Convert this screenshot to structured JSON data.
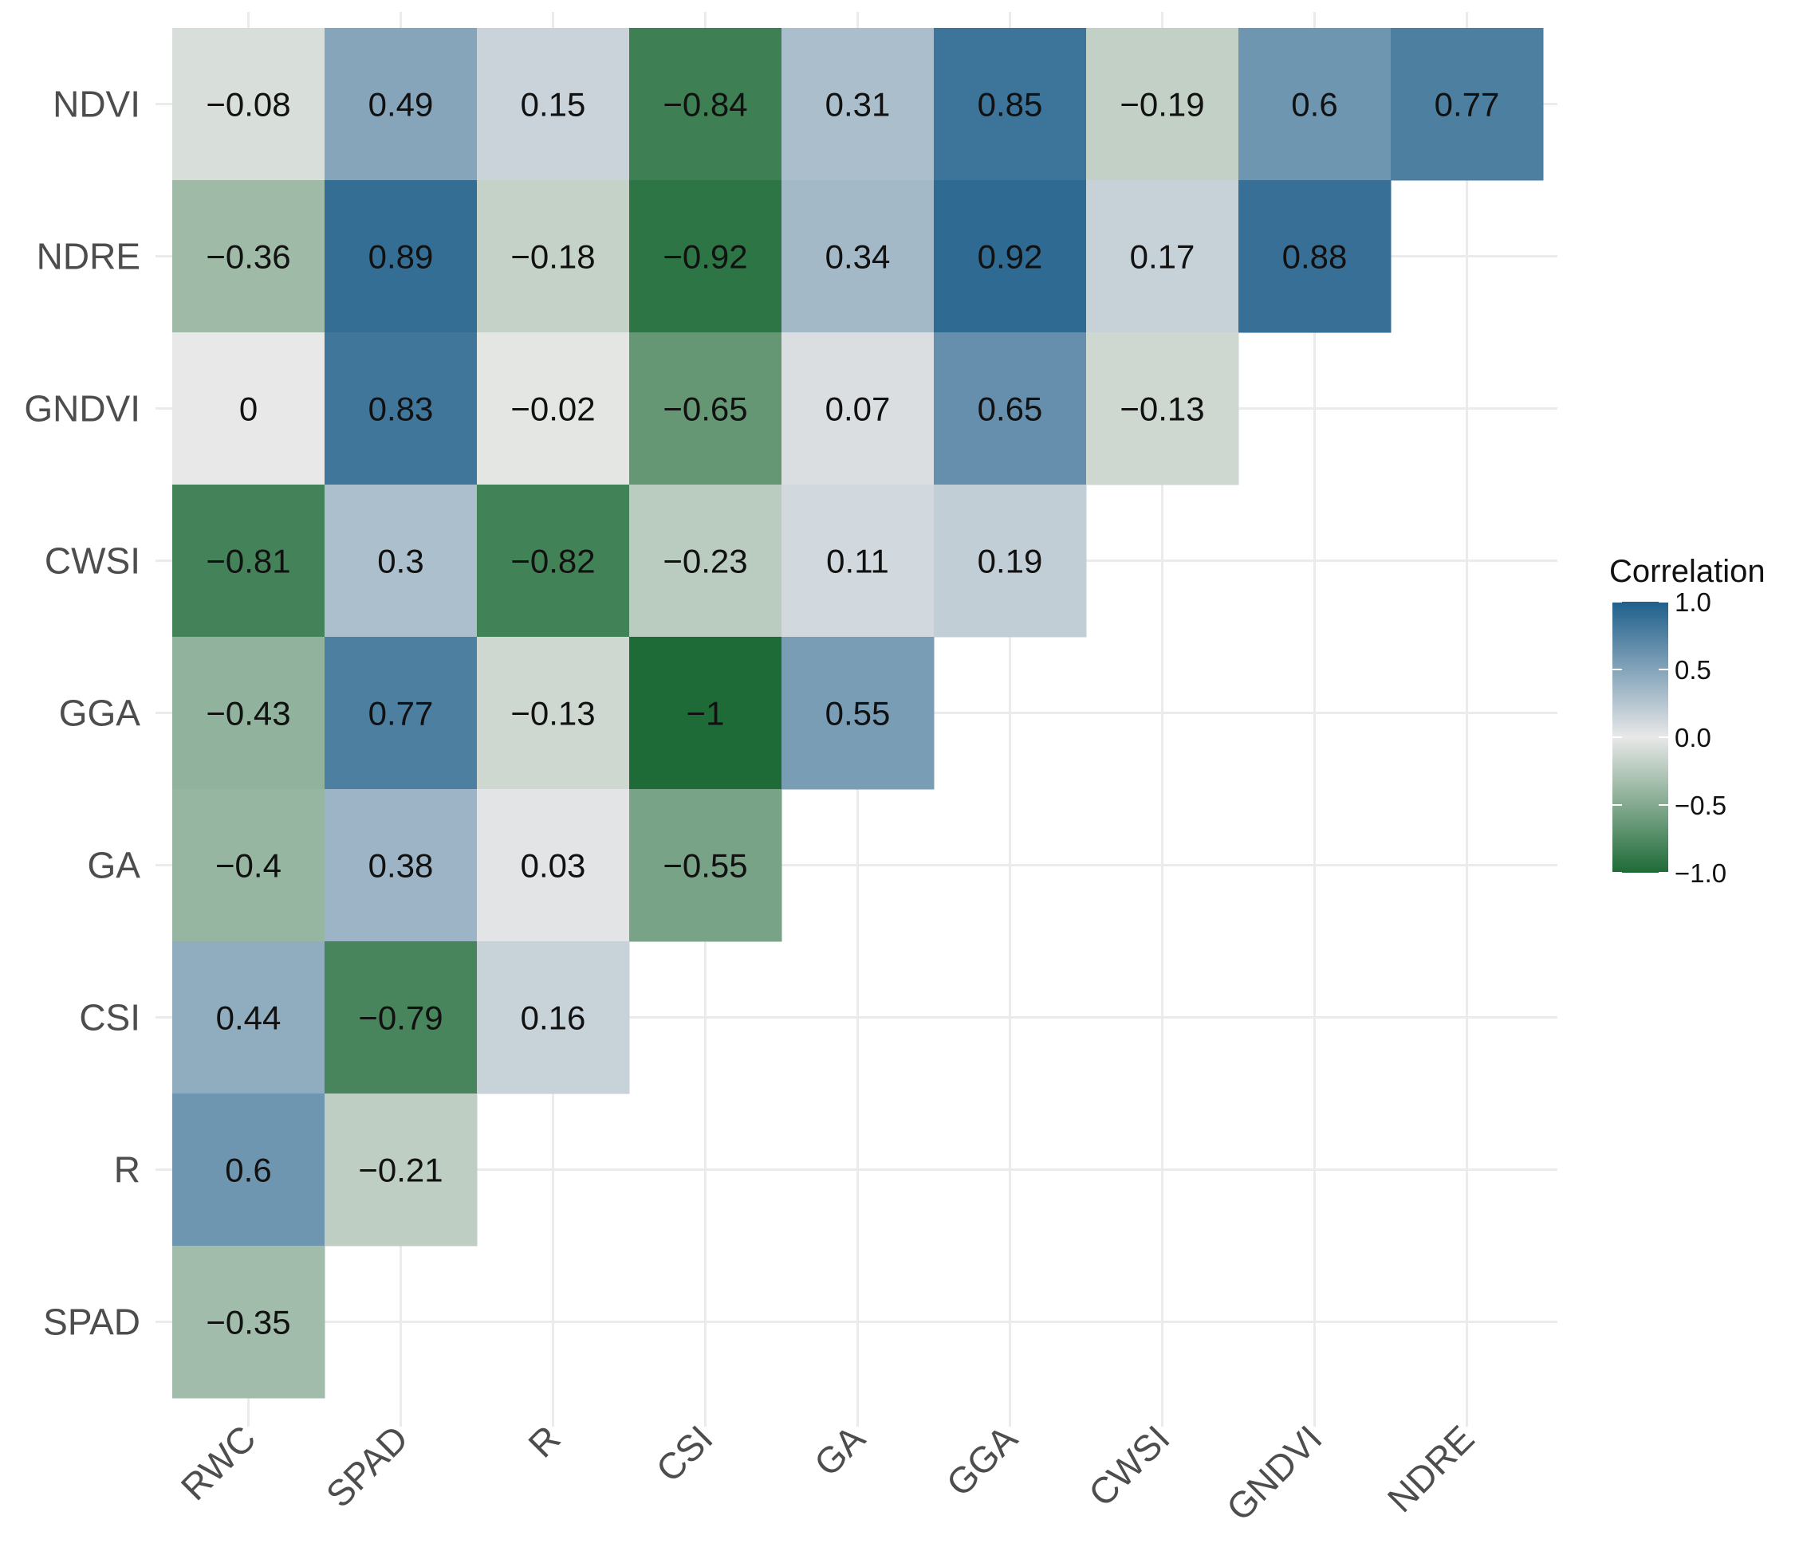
{
  "chart_data": {
    "type": "heatmap",
    "title": "",
    "xlabel": "",
    "ylabel": "",
    "x_categories": [
      "RWC",
      "SPAD",
      "R",
      "CSI",
      "GA",
      "GGA",
      "CWSI",
      "GNDVI",
      "NDRE"
    ],
    "y_categories": [
      "NDVI",
      "NDRE",
      "GNDVI",
      "CWSI",
      "GGA",
      "GA",
      "CSI",
      "R",
      "SPAD"
    ],
    "cells": [
      {
        "y": "NDVI",
        "x": "RWC",
        "value": -0.08,
        "label": "−0.08"
      },
      {
        "y": "NDVI",
        "x": "SPAD",
        "value": 0.49,
        "label": "0.49"
      },
      {
        "y": "NDVI",
        "x": "R",
        "value": 0.15,
        "label": "0.15"
      },
      {
        "y": "NDVI",
        "x": "CSI",
        "value": -0.84,
        "label": "−0.84"
      },
      {
        "y": "NDVI",
        "x": "GA",
        "value": 0.31,
        "label": "0.31"
      },
      {
        "y": "NDVI",
        "x": "GGA",
        "value": 0.85,
        "label": "0.85"
      },
      {
        "y": "NDVI",
        "x": "CWSI",
        "value": -0.19,
        "label": "−0.19"
      },
      {
        "y": "NDVI",
        "x": "GNDVI",
        "value": 0.6,
        "label": "0.6"
      },
      {
        "y": "NDVI",
        "x": "NDRE",
        "value": 0.77,
        "label": "0.77"
      },
      {
        "y": "NDRE",
        "x": "RWC",
        "value": -0.36,
        "label": "−0.36"
      },
      {
        "y": "NDRE",
        "x": "SPAD",
        "value": 0.89,
        "label": "0.89"
      },
      {
        "y": "NDRE",
        "x": "R",
        "value": -0.18,
        "label": "−0.18"
      },
      {
        "y": "NDRE",
        "x": "CSI",
        "value": -0.92,
        "label": "−0.92"
      },
      {
        "y": "NDRE",
        "x": "GA",
        "value": 0.34,
        "label": "0.34"
      },
      {
        "y": "NDRE",
        "x": "GGA",
        "value": 0.92,
        "label": "0.92"
      },
      {
        "y": "NDRE",
        "x": "CWSI",
        "value": 0.17,
        "label": "0.17"
      },
      {
        "y": "NDRE",
        "x": "GNDVI",
        "value": 0.88,
        "label": "0.88"
      },
      {
        "y": "GNDVI",
        "x": "RWC",
        "value": 0,
        "label": "0"
      },
      {
        "y": "GNDVI",
        "x": "SPAD",
        "value": 0.83,
        "label": "0.83"
      },
      {
        "y": "GNDVI",
        "x": "R",
        "value": -0.02,
        "label": "−0.02"
      },
      {
        "y": "GNDVI",
        "x": "CSI",
        "value": -0.65,
        "label": "−0.65"
      },
      {
        "y": "GNDVI",
        "x": "GA",
        "value": 0.07,
        "label": "0.07"
      },
      {
        "y": "GNDVI",
        "x": "GGA",
        "value": 0.65,
        "label": "0.65"
      },
      {
        "y": "GNDVI",
        "x": "CWSI",
        "value": -0.13,
        "label": "−0.13"
      },
      {
        "y": "CWSI",
        "x": "RWC",
        "value": -0.81,
        "label": "−0.81"
      },
      {
        "y": "CWSI",
        "x": "SPAD",
        "value": 0.3,
        "label": "0.3"
      },
      {
        "y": "CWSI",
        "x": "R",
        "value": -0.82,
        "label": "−0.82"
      },
      {
        "y": "CWSI",
        "x": "CSI",
        "value": -0.23,
        "label": "−0.23"
      },
      {
        "y": "CWSI",
        "x": "GA",
        "value": 0.11,
        "label": "0.11"
      },
      {
        "y": "CWSI",
        "x": "GGA",
        "value": 0.19,
        "label": "0.19"
      },
      {
        "y": "GGA",
        "x": "RWC",
        "value": -0.43,
        "label": "−0.43"
      },
      {
        "y": "GGA",
        "x": "SPAD",
        "value": 0.77,
        "label": "0.77"
      },
      {
        "y": "GGA",
        "x": "R",
        "value": -0.13,
        "label": "−0.13"
      },
      {
        "y": "GGA",
        "x": "CSI",
        "value": -1,
        "label": "−1"
      },
      {
        "y": "GGA",
        "x": "GA",
        "value": 0.55,
        "label": "0.55"
      },
      {
        "y": "GA",
        "x": "RWC",
        "value": -0.4,
        "label": "−0.4"
      },
      {
        "y": "GA",
        "x": "SPAD",
        "value": 0.38,
        "label": "0.38"
      },
      {
        "y": "GA",
        "x": "R",
        "value": 0.03,
        "label": "0.03"
      },
      {
        "y": "GA",
        "x": "CSI",
        "value": -0.55,
        "label": "−0.55"
      },
      {
        "y": "CSI",
        "x": "RWC",
        "value": 0.44,
        "label": "0.44"
      },
      {
        "y": "CSI",
        "x": "SPAD",
        "value": -0.79,
        "label": "−0.79"
      },
      {
        "y": "CSI",
        "x": "R",
        "value": 0.16,
        "label": "0.16"
      },
      {
        "y": "R",
        "x": "RWC",
        "value": 0.6,
        "label": "0.6"
      },
      {
        "y": "R",
        "x": "SPAD",
        "value": -0.21,
        "label": "−0.21"
      },
      {
        "y": "SPAD",
        "x": "RWC",
        "value": -0.35,
        "label": "−0.35"
      }
    ],
    "grid": true,
    "legend": {
      "title": "Correlation",
      "position": "right",
      "range": [
        -1.0,
        1.0
      ],
      "ticks": [
        {
          "value": 1.0,
          "label": "1.0"
        },
        {
          "value": 0.5,
          "label": "0.5"
        },
        {
          "value": 0.0,
          "label": "0.0"
        },
        {
          "value": -0.5,
          "label": "−0.5"
        },
        {
          "value": -1.0,
          "label": "−1.0"
        }
      ]
    },
    "colors": {
      "high": "#1f5f8b",
      "mid": "#e8e8e8",
      "low": "#1e6b37",
      "grid": "#ebebeb",
      "background": "#ffffff"
    }
  }
}
